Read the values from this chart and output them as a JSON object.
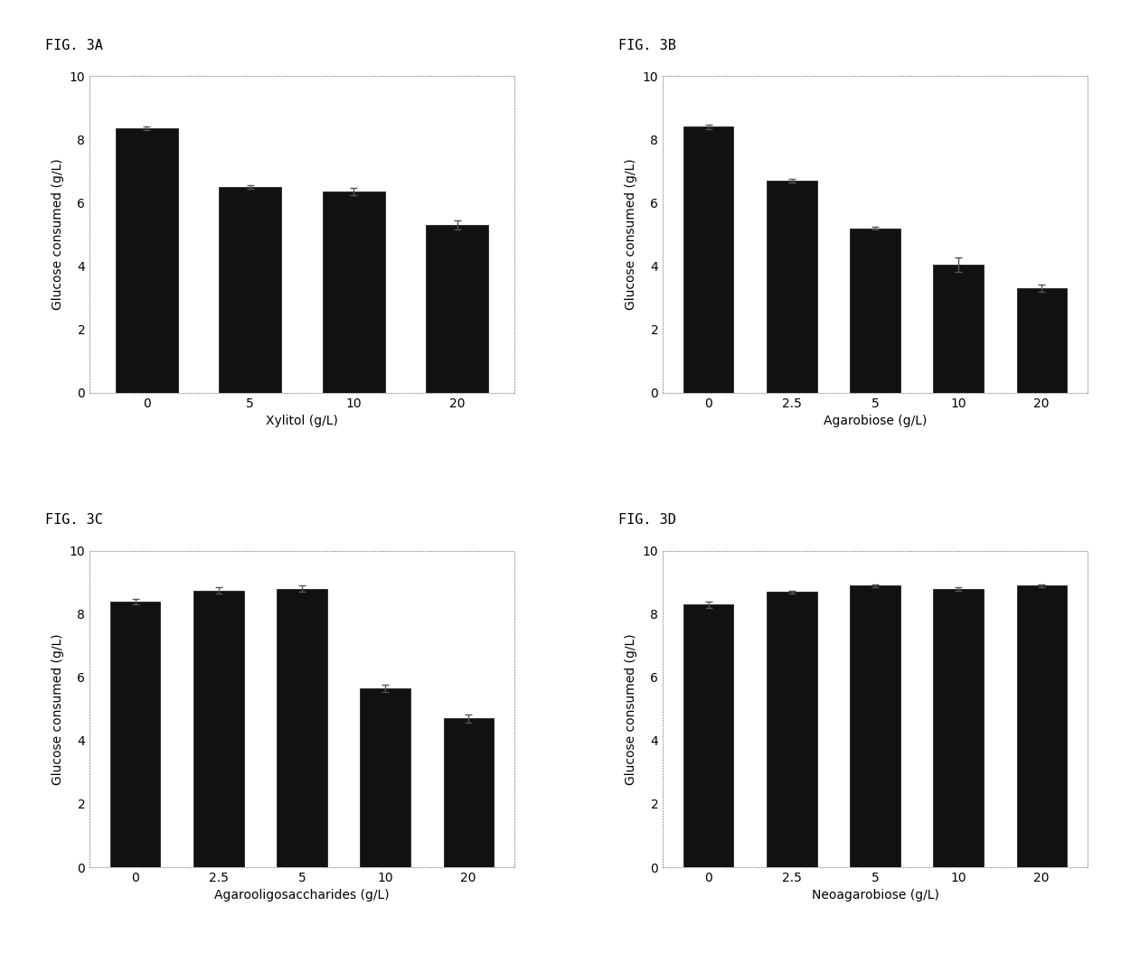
{
  "panels": [
    {
      "label": "FIG. 3A",
      "xlabel": "Xylitol (g/L)",
      "ylabel": "Glucose consumed (g/L)",
      "categories": [
        "0",
        "5",
        "10",
        "20"
      ],
      "values": [
        8.35,
        6.5,
        6.35,
        5.3
      ],
      "errors": [
        0.05,
        0.05,
        0.12,
        0.15
      ]
    },
    {
      "label": "FIG. 3B",
      "xlabel": "Agarobiose (g/L)",
      "ylabel": "Glucose consumed (g/L)",
      "categories": [
        "0",
        "2.5",
        "5",
        "10",
        "20"
      ],
      "values": [
        8.4,
        6.7,
        5.2,
        4.05,
        3.3
      ],
      "errors": [
        0.06,
        0.06,
        0.05,
        0.22,
        0.12
      ]
    },
    {
      "label": "FIG. 3C",
      "xlabel": "Agarooligosaccharides (g/L)",
      "ylabel": "Glucose consumed (g/L)",
      "categories": [
        "0",
        "2.5",
        "5",
        "10",
        "20"
      ],
      "values": [
        8.4,
        8.75,
        8.8,
        5.65,
        4.7
      ],
      "errors": [
        0.08,
        0.1,
        0.1,
        0.12,
        0.12
      ]
    },
    {
      "label": "FIG. 3D",
      "xlabel": "Neoagarobiose (g/L)",
      "ylabel": "Glucose consumed (g/L)",
      "categories": [
        "0",
        "2.5",
        "5",
        "10",
        "20"
      ],
      "values": [
        8.3,
        8.7,
        8.9,
        8.8,
        8.9
      ],
      "errors": [
        0.1,
        0.05,
        0.05,
        0.05,
        0.05
      ]
    }
  ],
  "bar_color": "#111111",
  "background_color": "#ffffff",
  "fig_bg_color": "#ffffff",
  "ylim": [
    0,
    10
  ],
  "yticks": [
    0,
    2,
    4,
    6,
    8,
    10
  ],
  "bar_width": 0.6,
  "label_fontsize": 10,
  "tick_fontsize": 10,
  "fig_label_fontsize": 11,
  "error_color": "#555555",
  "error_capsize": 3,
  "error_linewidth": 1.0,
  "spine_color": "#aaaaaa",
  "spine_linestyle": "dotted"
}
